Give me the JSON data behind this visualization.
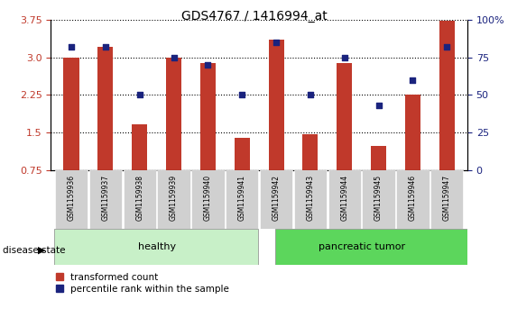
{
  "title": "GDS4767 / 1416994_at",
  "samples": [
    "GSM1159936",
    "GSM1159937",
    "GSM1159938",
    "GSM1159939",
    "GSM1159940",
    "GSM1159941",
    "GSM1159942",
    "GSM1159943",
    "GSM1159944",
    "GSM1159945",
    "GSM1159946",
    "GSM1159947"
  ],
  "transformed_count": [
    3.0,
    3.2,
    1.67,
    3.0,
    2.88,
    1.4,
    3.35,
    1.47,
    2.88,
    1.23,
    2.25,
    3.72
  ],
  "percentile_rank": [
    82,
    82,
    50,
    75,
    70,
    50,
    85,
    50,
    75,
    43,
    60,
    82
  ],
  "bar_color": "#c0392b",
  "dot_color": "#1a237e",
  "ylim_left": [
    0.75,
    3.75
  ],
  "ylim_right": [
    0,
    100
  ],
  "yticks_left": [
    0.75,
    1.5,
    2.25,
    3.0,
    3.75
  ],
  "yticks_right": [
    0,
    25,
    50,
    75,
    100
  ],
  "healthy_count": 6,
  "healthy_label": "healthy",
  "tumor_label": "pancreatic tumor",
  "disease_label": "disease state",
  "legend_bar": "transformed count",
  "legend_dot": "percentile rank within the sample",
  "healthy_color": "#c8f0c8",
  "tumor_color": "#5cd65c",
  "xtick_bg": "#d0d0d0",
  "bar_width": 0.45
}
